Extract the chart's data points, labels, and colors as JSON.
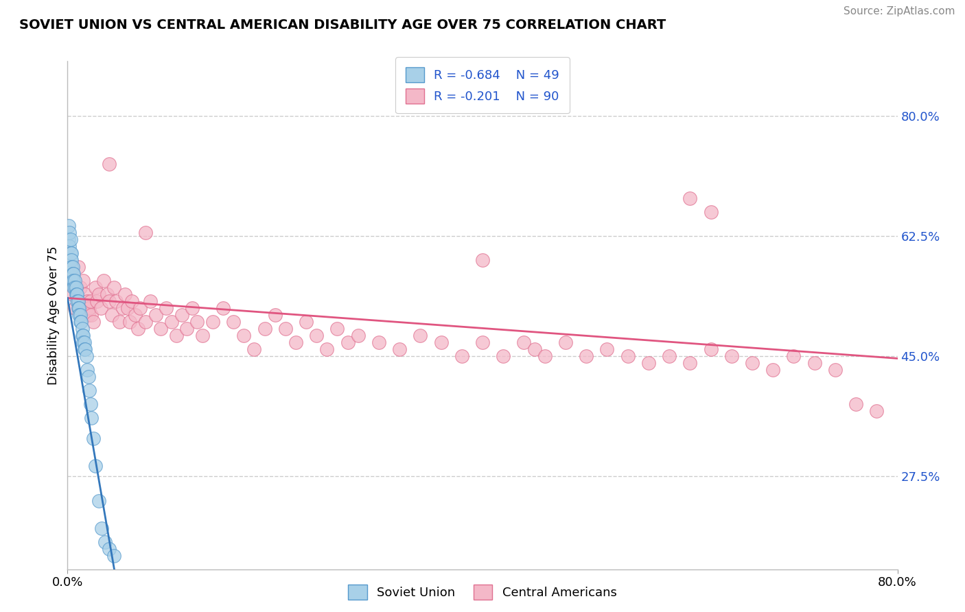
{
  "title": "SOVIET UNION VS CENTRAL AMERICAN DISABILITY AGE OVER 75 CORRELATION CHART",
  "source": "Source: ZipAtlas.com",
  "ylabel": "Disability Age Over 75",
  "legend_label1": "Soviet Union",
  "legend_label2": "Central Americans",
  "color_blue_fill": "#a8d0e8",
  "color_pink_fill": "#f4b8c8",
  "color_blue_edge": "#5599cc",
  "color_pink_edge": "#e07090",
  "color_blue_line": "#3377bb",
  "color_pink_line": "#e05580",
  "background_color": "#ffffff",
  "grid_color": "#cccccc",
  "xlim": [
    0.0,
    0.8
  ],
  "ylim": [
    0.14,
    0.88
  ],
  "y_tick_values": [
    0.275,
    0.45,
    0.625,
    0.8
  ],
  "y_tick_labels": [
    "27.5%",
    "45.0%",
    "62.5%",
    "80.0%"
  ],
  "x_tick_values": [
    0.0,
    0.8
  ],
  "x_tick_labels": [
    "0.0%",
    "80.0%"
  ],
  "soviet_x": [
    0.001,
    0.001,
    0.002,
    0.002,
    0.003,
    0.003,
    0.003,
    0.004,
    0.004,
    0.004,
    0.005,
    0.005,
    0.005,
    0.006,
    0.006,
    0.006,
    0.007,
    0.007,
    0.008,
    0.008,
    0.009,
    0.009,
    0.01,
    0.01,
    0.011,
    0.011,
    0.012,
    0.012,
    0.013,
    0.014,
    0.014,
    0.015,
    0.015,
    0.016,
    0.016,
    0.017,
    0.018,
    0.019,
    0.02,
    0.021,
    0.022,
    0.023,
    0.025,
    0.027,
    0.03,
    0.033,
    0.036,
    0.04,
    0.045
  ],
  "soviet_y": [
    0.64,
    0.62,
    0.63,
    0.61,
    0.62,
    0.6,
    0.59,
    0.6,
    0.59,
    0.58,
    0.58,
    0.57,
    0.56,
    0.57,
    0.56,
    0.55,
    0.56,
    0.55,
    0.55,
    0.54,
    0.54,
    0.53,
    0.53,
    0.52,
    0.52,
    0.51,
    0.51,
    0.5,
    0.5,
    0.49,
    0.48,
    0.48,
    0.47,
    0.47,
    0.46,
    0.46,
    0.45,
    0.43,
    0.42,
    0.4,
    0.38,
    0.36,
    0.33,
    0.29,
    0.24,
    0.2,
    0.18,
    0.17,
    0.16
  ],
  "central_x": [
    0.005,
    0.007,
    0.01,
    0.012,
    0.015,
    0.017,
    0.018,
    0.019,
    0.02,
    0.021,
    0.022,
    0.023,
    0.025,
    0.027,
    0.028,
    0.03,
    0.032,
    0.035,
    0.038,
    0.04,
    0.043,
    0.045,
    0.047,
    0.05,
    0.053,
    0.055,
    0.058,
    0.06,
    0.062,
    0.065,
    0.068,
    0.07,
    0.075,
    0.08,
    0.085,
    0.09,
    0.095,
    0.1,
    0.105,
    0.11,
    0.115,
    0.12,
    0.125,
    0.13,
    0.14,
    0.15,
    0.16,
    0.17,
    0.18,
    0.19,
    0.2,
    0.21,
    0.22,
    0.23,
    0.24,
    0.25,
    0.26,
    0.27,
    0.28,
    0.3,
    0.32,
    0.34,
    0.36,
    0.38,
    0.4,
    0.42,
    0.44,
    0.45,
    0.46,
    0.48,
    0.5,
    0.52,
    0.54,
    0.56,
    0.58,
    0.6,
    0.62,
    0.64,
    0.66,
    0.68,
    0.7,
    0.72,
    0.74,
    0.6,
    0.62,
    0.4,
    0.76,
    0.78,
    0.04,
    0.075
  ],
  "central_y": [
    0.54,
    0.52,
    0.58,
    0.55,
    0.56,
    0.54,
    0.52,
    0.53,
    0.51,
    0.52,
    0.53,
    0.51,
    0.5,
    0.55,
    0.53,
    0.54,
    0.52,
    0.56,
    0.54,
    0.53,
    0.51,
    0.55,
    0.53,
    0.5,
    0.52,
    0.54,
    0.52,
    0.5,
    0.53,
    0.51,
    0.49,
    0.52,
    0.5,
    0.53,
    0.51,
    0.49,
    0.52,
    0.5,
    0.48,
    0.51,
    0.49,
    0.52,
    0.5,
    0.48,
    0.5,
    0.52,
    0.5,
    0.48,
    0.46,
    0.49,
    0.51,
    0.49,
    0.47,
    0.5,
    0.48,
    0.46,
    0.49,
    0.47,
    0.48,
    0.47,
    0.46,
    0.48,
    0.47,
    0.45,
    0.47,
    0.45,
    0.47,
    0.46,
    0.45,
    0.47,
    0.45,
    0.46,
    0.45,
    0.44,
    0.45,
    0.44,
    0.46,
    0.45,
    0.44,
    0.43,
    0.45,
    0.44,
    0.43,
    0.68,
    0.66,
    0.59,
    0.38,
    0.37,
    0.73,
    0.63
  ],
  "pink_trend_x0": 0.0,
  "pink_trend_y0": 0.535,
  "pink_trend_x1": 0.8,
  "pink_trend_y1": 0.447,
  "blue_trend_x0": 0.0,
  "blue_trend_y0": 0.535,
  "blue_trend_x1": 0.045,
  "blue_trend_y1": 0.14
}
